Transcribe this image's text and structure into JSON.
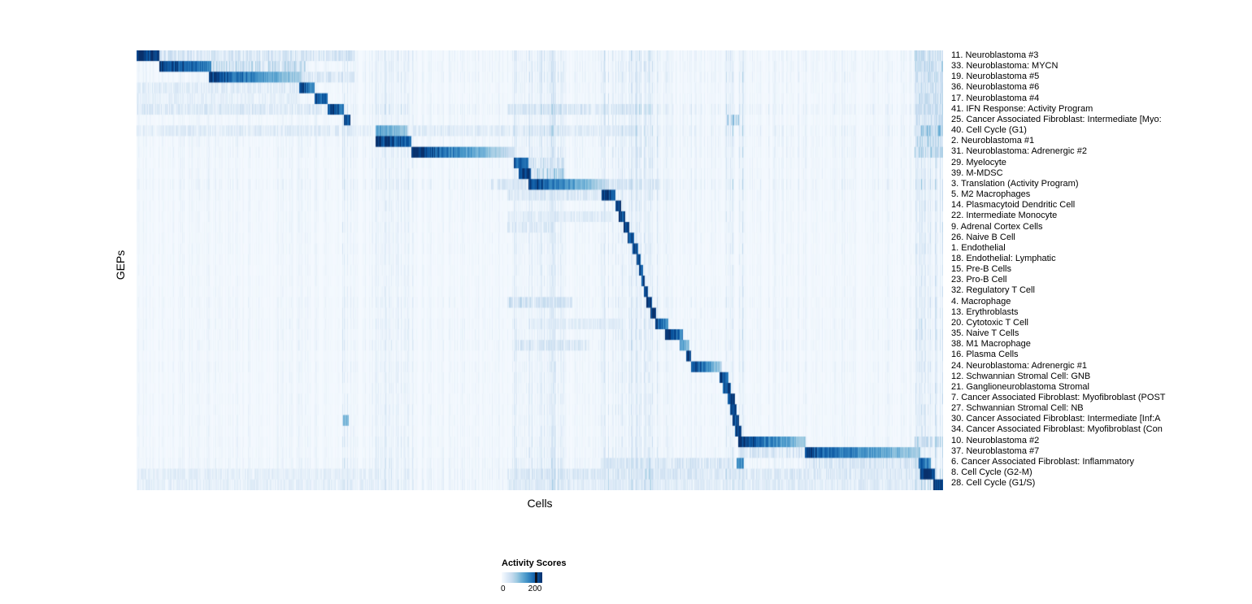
{
  "chart_data": {
    "type": "heatmap",
    "title": "",
    "xlabel": "Cells",
    "ylabel": "GEPs",
    "colorbar": {
      "title": "Activity Scores",
      "min": 0,
      "max": 200,
      "min_label": "0",
      "max_label": "200"
    },
    "colormap": [
      "#f7fbff",
      "#deebf7",
      "#c6dbef",
      "#9ecae1",
      "#6baed6",
      "#4292c6",
      "#2171b5",
      "#08519c",
      "#08306b"
    ],
    "n_columns": 992,
    "noise_seed": 42,
    "streaks": [
      {
        "s": 0.252,
        "e": 0.266,
        "boost": 2.6
      },
      {
        "s": 0.296,
        "e": 0.343,
        "boost": 1.8
      },
      {
        "s": 0.465,
        "e": 0.53,
        "boost": 2.4
      },
      {
        "s": 0.575,
        "e": 0.65,
        "boost": 2.8
      },
      {
        "s": 0.655,
        "e": 0.69,
        "boost": 1.8
      },
      {
        "s": 0.73,
        "e": 0.755,
        "boost": 2.8
      },
      {
        "s": 0.965,
        "e": 1.0,
        "boost": 3.2
      }
    ],
    "rows": [
      {
        "label": "11. Neuroblastoma #3",
        "noise": 0.12,
        "blocks": [
          {
            "s": 0.0,
            "e": 0.028,
            "v": 1.0
          },
          {
            "s": 0.028,
            "e": 0.27,
            "v": 0.22,
            "sp": 1
          },
          {
            "s": 0.965,
            "e": 1.0,
            "v": 0.3,
            "sp": 1
          }
        ]
      },
      {
        "label": "33. Neuroblastoma: MYCN",
        "noise": 0.12,
        "blocks": [
          {
            "s": 0.028,
            "e": 0.093,
            "v": 1.0,
            "fade": 0.35
          },
          {
            "s": 0.093,
            "e": 0.21,
            "v": 0.3,
            "sp": 1
          },
          {
            "s": 0.965,
            "e": 1.0,
            "v": 0.3,
            "sp": 1
          }
        ]
      },
      {
        "label": "19. Neuroblastoma #5",
        "noise": 0.12,
        "blocks": [
          {
            "s": 0.09,
            "e": 0.205,
            "v": 0.95,
            "fade": 0.65
          },
          {
            "s": 0.205,
            "e": 0.27,
            "v": 0.2,
            "sp": 1
          },
          {
            "s": 0.965,
            "e": 1.0,
            "v": 0.25,
            "sp": 1
          }
        ]
      },
      {
        "label": "36. Neuroblastoma #6",
        "noise": 0.1,
        "blocks": [
          {
            "s": 0.202,
            "e": 0.221,
            "v": 0.95,
            "fade": 0.3
          },
          {
            "s": 0.0,
            "e": 0.2,
            "v": 0.15,
            "sp": 1
          },
          {
            "s": 0.965,
            "e": 1.0,
            "v": 0.25,
            "sp": 1
          }
        ]
      },
      {
        "label": "17. Neuroblastoma #4",
        "noise": 0.1,
        "blocks": [
          {
            "s": 0.221,
            "e": 0.237,
            "v": 0.9,
            "fade": 0.2
          },
          {
            "s": 0.0,
            "e": 0.2,
            "v": 0.12,
            "sp": 1
          },
          {
            "s": 0.965,
            "e": 1.0,
            "v": 0.25,
            "sp": 1
          }
        ]
      },
      {
        "label": "41. IFN Response: Activity Program",
        "noise": 0.16,
        "blocks": [
          {
            "s": 0.237,
            "e": 0.257,
            "v": 0.95,
            "fade": 0.2
          },
          {
            "s": 0.0,
            "e": 0.23,
            "v": 0.18,
            "sp": 1
          },
          {
            "s": 0.46,
            "e": 0.62,
            "v": 0.2,
            "sp": 1
          },
          {
            "s": 0.965,
            "e": 1.0,
            "v": 0.3,
            "sp": 1
          }
        ]
      },
      {
        "label": "25. Cancer Associated Fibroblast: Intermediate [Myo:",
        "noise": 0.1,
        "blocks": [
          {
            "s": 0.257,
            "e": 0.265,
            "v": 0.9
          },
          {
            "s": 0.732,
            "e": 0.748,
            "v": 0.5,
            "sp": 1
          },
          {
            "s": 0.965,
            "e": 1.0,
            "v": 0.25,
            "sp": 1
          }
        ]
      },
      {
        "label": "40. Cell Cycle (G1)",
        "noise": 0.15,
        "blocks": [
          {
            "s": 0.296,
            "e": 0.336,
            "v": 0.55,
            "fade": 0.3
          },
          {
            "s": 0.0,
            "e": 0.29,
            "v": 0.15,
            "sp": 1
          },
          {
            "s": 0.34,
            "e": 0.62,
            "v": 0.15,
            "sp": 1
          },
          {
            "s": 0.965,
            "e": 1.0,
            "v": 0.45,
            "sp": 1
          }
        ]
      },
      {
        "label": "2. Neuroblastoma #1",
        "noise": 0.12,
        "blocks": [
          {
            "s": 0.296,
            "e": 0.341,
            "v": 1.0,
            "fade": 0.25
          },
          {
            "s": 0.965,
            "e": 1.0,
            "v": 0.3,
            "sp": 1
          }
        ]
      },
      {
        "label": "31. Neuroblastoma: Adrenergic #2",
        "noise": 0.12,
        "blocks": [
          {
            "s": 0.341,
            "e": 0.468,
            "v": 1.0,
            "fade": 0.8
          },
          {
            "s": 0.965,
            "e": 1.0,
            "v": 0.35,
            "sp": 1
          }
        ]
      },
      {
        "label": "29. Myelocyte",
        "noise": 0.1,
        "blocks": [
          {
            "s": 0.468,
            "e": 0.486,
            "v": 0.85,
            "fade": 0.2
          },
          {
            "s": 0.486,
            "e": 0.53,
            "v": 0.25,
            "sp": 1
          }
        ]
      },
      {
        "label": "39. M-MDSC",
        "noise": 0.1,
        "blocks": [
          {
            "s": 0.474,
            "e": 0.489,
            "v": 1.0
          },
          {
            "s": 0.489,
            "e": 0.53,
            "v": 0.4,
            "sp": 1
          }
        ]
      },
      {
        "label": "3. Translation (Activity Program)",
        "noise": 0.14,
        "blocks": [
          {
            "s": 0.486,
            "e": 0.585,
            "v": 0.95,
            "fade": 0.75
          },
          {
            "s": 0.585,
            "e": 0.65,
            "v": 0.2,
            "sp": 1
          },
          {
            "s": 0.44,
            "e": 0.486,
            "v": 0.2,
            "sp": 1
          }
        ]
      },
      {
        "label": "5. M2 Macrophages",
        "noise": 0.1,
        "blocks": [
          {
            "s": 0.577,
            "e": 0.594,
            "v": 1.0,
            "fade": 0.2
          },
          {
            "s": 0.46,
            "e": 0.577,
            "v": 0.18,
            "sp": 1
          }
        ]
      },
      {
        "label": "14. Plasmacytoid Dendritic Cell",
        "noise": 0.09,
        "blocks": [
          {
            "s": 0.594,
            "e": 0.601,
            "v": 0.95
          }
        ]
      },
      {
        "label": "22. Intermediate Monocyte",
        "noise": 0.09,
        "blocks": [
          {
            "s": 0.598,
            "e": 0.606,
            "v": 0.9
          },
          {
            "s": 0.46,
            "e": 0.59,
            "v": 0.15,
            "sp": 1
          }
        ]
      },
      {
        "label": "9. Adrenal Cortex Cells",
        "noise": 0.09,
        "blocks": [
          {
            "s": 0.604,
            "e": 0.611,
            "v": 0.95
          },
          {
            "s": 0.46,
            "e": 0.52,
            "v": 0.18,
            "sp": 1
          }
        ]
      },
      {
        "label": "26. Naive B Cell",
        "noise": 0.09,
        "blocks": [
          {
            "s": 0.609,
            "e": 0.617,
            "v": 0.95
          }
        ]
      },
      {
        "label": "1. Endothelial",
        "noise": 0.09,
        "blocks": [
          {
            "s": 0.615,
            "e": 0.622,
            "v": 0.95
          }
        ]
      },
      {
        "label": "18. Endothelial: Lymphatic",
        "noise": 0.08,
        "blocks": [
          {
            "s": 0.62,
            "e": 0.625,
            "v": 0.9
          }
        ]
      },
      {
        "label": "15. Pre-B Cells",
        "noise": 0.08,
        "blocks": [
          {
            "s": 0.623,
            "e": 0.628,
            "v": 0.9
          }
        ]
      },
      {
        "label": "23. Pro-B Cell",
        "noise": 0.08,
        "blocks": [
          {
            "s": 0.626,
            "e": 0.63,
            "v": 0.9
          }
        ]
      },
      {
        "label": "32. Regulatory T Cell",
        "noise": 0.08,
        "blocks": [
          {
            "s": 0.629,
            "e": 0.634,
            "v": 0.9
          }
        ]
      },
      {
        "label": "4. Macrophage",
        "noise": 0.1,
        "blocks": [
          {
            "s": 0.632,
            "e": 0.639,
            "v": 0.95
          },
          {
            "s": 0.46,
            "e": 0.54,
            "v": 0.25,
            "sp": 1
          }
        ]
      },
      {
        "label": "13. Erythroblasts",
        "noise": 0.09,
        "blocks": [
          {
            "s": 0.637,
            "e": 0.644,
            "v": 0.95
          }
        ]
      },
      {
        "label": "20. Cytotoxic T Cell",
        "noise": 0.1,
        "blocks": [
          {
            "s": 0.643,
            "e": 0.659,
            "v": 0.9,
            "fade": 0.3
          },
          {
            "s": 0.49,
            "e": 0.6,
            "v": 0.15,
            "sp": 1
          }
        ]
      },
      {
        "label": "35. Naive T Cells",
        "noise": 0.1,
        "blocks": [
          {
            "s": 0.655,
            "e": 0.677,
            "v": 1.0,
            "fade": 0.35
          }
        ]
      },
      {
        "label": "38. M1 Macrophage",
        "noise": 0.11,
        "blocks": [
          {
            "s": 0.673,
            "e": 0.685,
            "v": 0.6,
            "fade": 0.3
          },
          {
            "s": 0.47,
            "e": 0.56,
            "v": 0.2,
            "sp": 1
          }
        ]
      },
      {
        "label": "16. Plasma Cells",
        "noise": 0.08,
        "blocks": [
          {
            "s": 0.681,
            "e": 0.687,
            "v": 0.9
          }
        ]
      },
      {
        "label": "24. Neuroblastoma: Adrenergic #1",
        "noise": 0.1,
        "blocks": [
          {
            "s": 0.687,
            "e": 0.726,
            "v": 1.0,
            "fade": 0.7
          }
        ]
      },
      {
        "label": "12. Schwannian Stromal Cell: GNB",
        "noise": 0.09,
        "blocks": [
          {
            "s": 0.723,
            "e": 0.734,
            "v": 1.0,
            "fade": 0.3
          }
        ]
      },
      {
        "label": "21. Ganglioneuroblastoma Stromal",
        "noise": 0.09,
        "blocks": [
          {
            "s": 0.727,
            "e": 0.737,
            "v": 0.9
          }
        ]
      },
      {
        "label": "7. Cancer Associated Fibroblast: Myofibroblast (POST",
        "noise": 0.09,
        "blocks": [
          {
            "s": 0.733,
            "e": 0.742,
            "v": 0.95
          }
        ]
      },
      {
        "label": "27. Schwannian Stromal Cell: NB",
        "noise": 0.09,
        "blocks": [
          {
            "s": 0.736,
            "e": 0.744,
            "v": 0.9
          }
        ]
      },
      {
        "label": "30. Cancer Associated Fibroblast: Intermediate [Inf:A",
        "noise": 0.09,
        "blocks": [
          {
            "s": 0.739,
            "e": 0.747,
            "v": 0.9
          },
          {
            "s": 0.256,
            "e": 0.263,
            "v": 0.5
          }
        ]
      },
      {
        "label": "34. Cancer Associated Fibroblast: Myofibroblast (Con",
        "noise": 0.09,
        "blocks": [
          {
            "s": 0.742,
            "e": 0.75,
            "v": 0.9
          }
        ]
      },
      {
        "label": "10. Neuroblastoma #2",
        "noise": 0.1,
        "blocks": [
          {
            "s": 0.746,
            "e": 0.83,
            "v": 1.0,
            "fade": 0.65
          },
          {
            "s": 0.965,
            "e": 1.0,
            "v": 0.3,
            "sp": 1
          }
        ]
      },
      {
        "label": "37. Neuroblastoma #7",
        "noise": 0.1,
        "blocks": [
          {
            "s": 0.829,
            "e": 0.972,
            "v": 0.9,
            "fade": 0.6
          },
          {
            "s": 0.746,
            "e": 0.83,
            "v": 0.2,
            "sp": 1
          }
        ]
      },
      {
        "label": "6. Cancer Associated Fibroblast: Inflammatory",
        "noise": 0.13,
        "blocks": [
          {
            "s": 0.744,
            "e": 0.753,
            "v": 0.65
          },
          {
            "s": 0.58,
            "e": 0.74,
            "v": 0.2,
            "sp": 1
          },
          {
            "s": 0.83,
            "e": 0.97,
            "v": 0.2,
            "sp": 1
          },
          {
            "s": 0.97,
            "e": 0.985,
            "v": 0.8,
            "fade": 0.2
          }
        ]
      },
      {
        "label": "8. Cell Cycle (G2-M)",
        "noise": 0.15,
        "blocks": [
          {
            "s": 0.972,
            "e": 0.99,
            "v": 1.0
          },
          {
            "s": 0.46,
            "e": 0.97,
            "v": 0.18,
            "sp": 1
          },
          {
            "s": 0.0,
            "e": 0.3,
            "v": 0.12,
            "sp": 1
          }
        ]
      },
      {
        "label": "28. Cell Cycle (G1/S)",
        "noise": 0.15,
        "blocks": [
          {
            "s": 0.988,
            "e": 1.0,
            "v": 1.0
          },
          {
            "s": 0.46,
            "e": 0.97,
            "v": 0.15,
            "sp": 1
          },
          {
            "s": 0.0,
            "e": 0.3,
            "v": 0.12,
            "sp": 1
          }
        ]
      }
    ]
  }
}
